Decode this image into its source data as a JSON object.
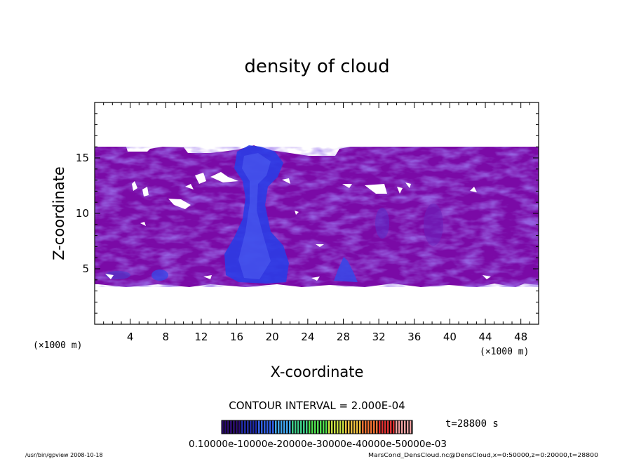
{
  "chart_data": {
    "type": "heatmap",
    "title": "density of cloud",
    "xlabel": "X-coordinate",
    "ylabel": "Z-coordinate",
    "x_unit": "(×1000 m)",
    "y_unit": "(×1000 m)",
    "xlim": [
      0,
      50
    ],
    "ylim": [
      0,
      20
    ],
    "xticks": [
      4,
      8,
      12,
      16,
      20,
      24,
      28,
      32,
      36,
      40,
      44,
      48
    ],
    "yticks": [
      5,
      10,
      15
    ],
    "field_extent": {
      "x": [
        0,
        50
      ],
      "z": [
        3.7,
        16.0
      ]
    },
    "colors": {
      "background": "#7a0aa6",
      "light_blue": "#5a3cd8",
      "deep_blue": "#2a3ce6",
      "white": "#ffffff"
    },
    "contour_interval": "CONTOUR INTERVAL = 2.000E-04",
    "colorbar": {
      "tick_labels": [
        "0.1000e-10",
        "0.1000e-03",
        "0.2000e-03",
        "0.3000e-03",
        "0.4000e-03",
        "0.5000e-03"
      ],
      "raw_text": "0.10000e-10000e-20000e-30000e-40000e-50000e-03",
      "colors": [
        "#2a0a70",
        "#1f2aa8",
        "#2f5fe6",
        "#3fa6f0",
        "#3ccf8a",
        "#4ee04e",
        "#c8e040",
        "#f0c040",
        "#f07030",
        "#e03030",
        "#f0a0a0"
      ]
    },
    "time_label": "t=28800 s"
  },
  "footer": {
    "left": "/usr/bin/gpview   2008-10-18",
    "right": "MarsCond_DensCloud.nc@DensCloud,x=0:50000,z=0:20000,t=28800"
  }
}
